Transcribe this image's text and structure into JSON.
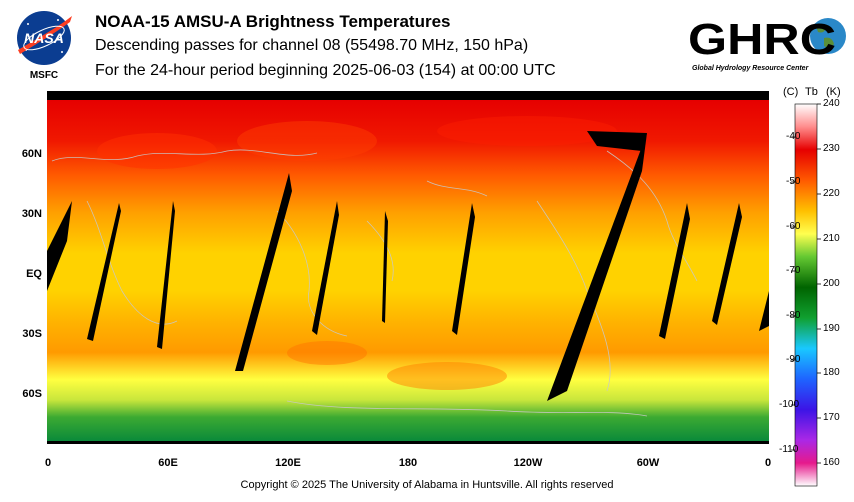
{
  "header": {
    "title": "NOAA-15 AMSU-A Brightness Temperatures",
    "subtitle": "Descending passes for channel 08 (55498.70 MHz, 150 hPa)",
    "period": "For the 24-hour period beginning 2025-06-03 (154) at 00:00 UTC"
  },
  "logos": {
    "nasa_word": "NASA",
    "nasa_caption": "MSFC",
    "ghrc_word": "GHRC",
    "ghrc_caption": "Global Hydrology Resource Center"
  },
  "map": {
    "lat_labels": [
      "60N",
      "30N",
      "EQ",
      "30S",
      "60S"
    ],
    "lon_labels": [
      "0",
      "60E",
      "120E",
      "180",
      "120W",
      "60W",
      "0"
    ],
    "colors": {
      "swath_gap": "#000000",
      "coastline": "#c8c8c8"
    }
  },
  "colorbar": {
    "header_c": "(C)",
    "header_tb": "Tb",
    "header_k": "(K)",
    "celsius_ticks": [
      "-40",
      "-50",
      "-60",
      "-70",
      "-80",
      "-90",
      "-100",
      "-110"
    ],
    "kelvin_ticks": [
      "240",
      "230",
      "220",
      "210",
      "200",
      "190",
      "180",
      "170",
      "160"
    ],
    "range_k": [
      156,
      240
    ],
    "colors": [
      "#ffffff",
      "#e61a8c",
      "#3c14e6",
      "#19c8ff",
      "#10a030",
      "#006400",
      "#ffff50",
      "#ffc000",
      "#ff5a00",
      "#e60000",
      "#ffffff"
    ]
  },
  "footer": {
    "copyright": "Copyright © 2025 The University of Alabama in Huntsville.  All rights reserved"
  }
}
